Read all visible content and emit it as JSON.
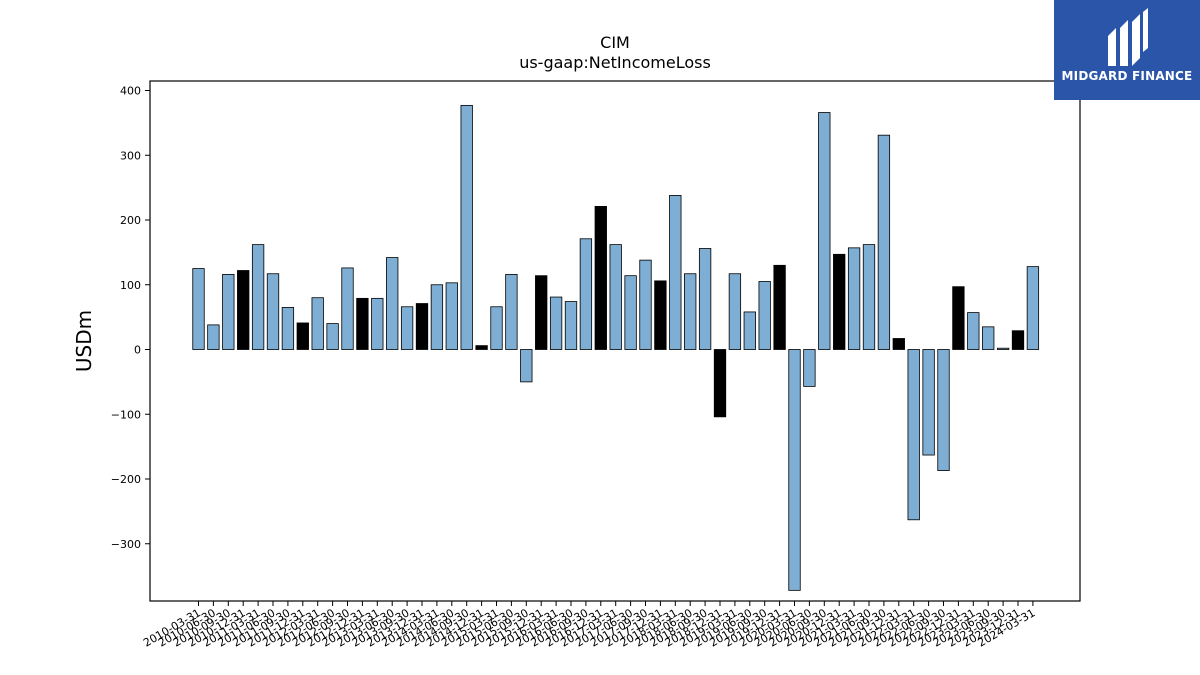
{
  "chart_data": {
    "type": "bar",
    "title": "CIM",
    "subtitle": "us-gaap:NetIncomeLoss",
    "ylabel": "USDm",
    "xlabel": "",
    "ylim": [
      -390,
      415
    ],
    "yticks": [
      400,
      300,
      200,
      100,
      0,
      -100,
      -200,
      -300
    ],
    "ytick_labels": [
      "400",
      "300",
      "200",
      "100",
      "0",
      "−100",
      "−200",
      "−300"
    ],
    "grid": false,
    "colors": {
      "quarter": "#7eaed3",
      "year_end": "#000000",
      "edge": "#000000"
    },
    "categories": [
      "2010-03-31",
      "2010-06-30",
      "2010-09-30",
      "2010-12-31",
      "2011-03-31",
      "2011-06-30",
      "2011-09-30",
      "2011-12-31",
      "2012-03-31",
      "2012-06-30",
      "2012-09-30",
      "2012-12-31",
      "2013-03-31",
      "2013-06-30",
      "2013-09-30",
      "2013-12-31",
      "2014-03-31",
      "2014-06-30",
      "2014-09-30",
      "2014-12-31",
      "2015-03-31",
      "2015-06-30",
      "2015-09-30",
      "2015-12-31",
      "2016-03-31",
      "2016-06-30",
      "2016-09-30",
      "2016-12-31",
      "2017-03-31",
      "2017-06-30",
      "2017-09-30",
      "2017-12-31",
      "2018-03-31",
      "2018-06-30",
      "2018-09-30",
      "2018-12-31",
      "2019-03-31",
      "2019-06-30",
      "2019-09-30",
      "2019-12-31",
      "2020-03-31",
      "2020-06-30",
      "2020-09-30",
      "2020-12-31",
      "2021-03-31",
      "2021-06-30",
      "2021-09-30",
      "2021-12-31",
      "2022-03-31",
      "2022-06-30",
      "2022-09-30",
      "2022-12-31",
      "2023-03-31",
      "2023-06-30",
      "2023-09-30",
      "2023-12-31",
      "2024-03-31"
    ],
    "series": [
      {
        "values": [
          125,
          38,
          116,
          122,
          162,
          117,
          65,
          41,
          80,
          40,
          126,
          79,
          79,
          142,
          66,
          71,
          100,
          103,
          377,
          6,
          66,
          116,
          -50,
          114,
          81,
          74,
          171,
          221,
          162,
          114,
          138,
          106,
          238,
          117,
          156,
          -104,
          117,
          58,
          105,
          130,
          -372,
          -57,
          366,
          147,
          157,
          162,
          331,
          17,
          -263,
          -163,
          -187,
          97,
          57,
          35,
          2,
          29,
          128
        ],
        "is_year_end": [
          0,
          0,
          0,
          1,
          0,
          0,
          0,
          1,
          0,
          0,
          0,
          1,
          0,
          0,
          0,
          1,
          0,
          0,
          0,
          1,
          0,
          0,
          0,
          1,
          0,
          0,
          0,
          1,
          0,
          0,
          0,
          1,
          0,
          0,
          0,
          1,
          0,
          0,
          0,
          1,
          0,
          0,
          0,
          1,
          0,
          0,
          0,
          1,
          0,
          0,
          0,
          1,
          0,
          0,
          0,
          1,
          0
        ]
      }
    ]
  },
  "logo": {
    "text": "MIDGARD FINANCE"
  }
}
